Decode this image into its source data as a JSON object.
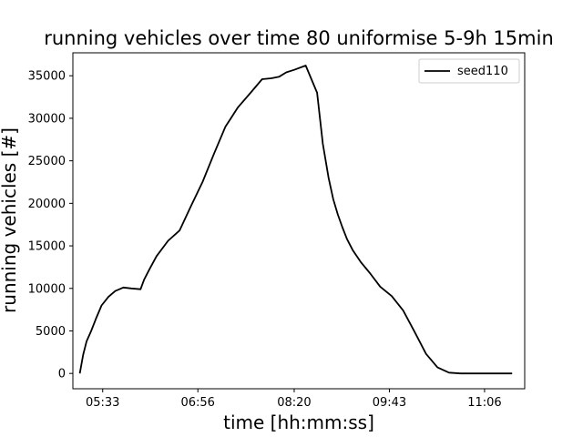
{
  "chart_data": {
    "type": "line",
    "title": "running vehicles over time 80  uniformise 5-9h 15min",
    "xlabel": "time [hh:mm:ss]",
    "ylabel": "running vehicles [#]",
    "xlim": [
      "05:07",
      "11:41"
    ],
    "ylim": [
      -1800,
      37700
    ],
    "x_ticks": [
      "05:33",
      "06:56",
      "08:20",
      "09:43",
      "11:06"
    ],
    "y_ticks": [
      0,
      5000,
      10000,
      15000,
      20000,
      25000,
      30000,
      35000
    ],
    "grid": false,
    "legend": {
      "position": "top-right",
      "entries": [
        "seed110"
      ]
    },
    "series": [
      {
        "name": "seed110",
        "color": "#000000",
        "x": [
          "05:13",
          "05:16",
          "05:19",
          "05:23",
          "05:27",
          "05:32",
          "05:38",
          "05:44",
          "05:51",
          "05:58",
          "06:06",
          "06:09",
          "06:14",
          "06:20",
          "06:30",
          "06:40",
          "06:50",
          "07:00",
          "07:10",
          "07:20",
          "07:31",
          "07:42",
          "07:52",
          "08:00",
          "08:07",
          "08:13",
          "08:20",
          "08:30",
          "08:40",
          "08:45",
          "08:50",
          "08:54",
          "08:58",
          "09:02",
          "09:06",
          "09:11",
          "09:18",
          "09:26",
          "09:35",
          "09:45",
          "09:55",
          "10:05",
          "10:15",
          "10:25",
          "10:35",
          "10:45",
          "10:55",
          "11:05",
          "11:12",
          "11:16",
          "11:20",
          "11:30"
        ],
        "y": [
          0,
          2200,
          3800,
          5000,
          6400,
          8000,
          9000,
          9700,
          10100,
          10000,
          9900,
          11000,
          12300,
          13800,
          15600,
          16800,
          19700,
          22500,
          25800,
          29000,
          31300,
          33000,
          34600,
          34700,
          34900,
          35400,
          35700,
          36200,
          33000,
          27000,
          23000,
          20500,
          18700,
          17200,
          15800,
          14500,
          13100,
          11800,
          10200,
          9100,
          7400,
          4900,
          2300,
          700,
          100,
          0,
          0,
          0,
          0,
          0,
          0,
          0
        ]
      }
    ]
  }
}
